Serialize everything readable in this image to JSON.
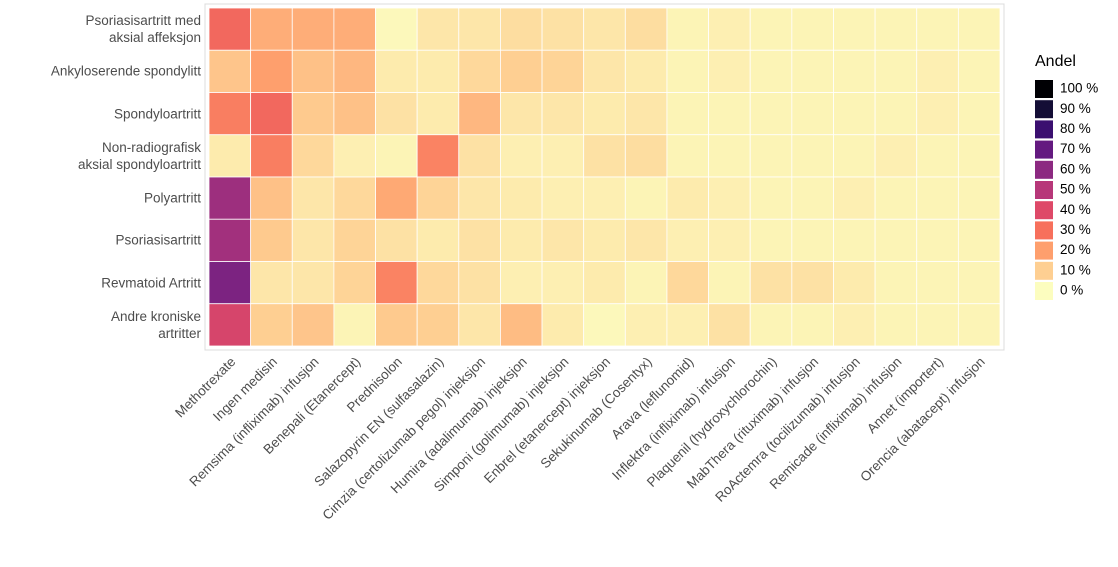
{
  "chart_data": {
    "type": "heatmap",
    "rows": [
      "Psoriasisartritt med\naksial affeksjon",
      "Ankyloserende spondylitt",
      "Spondyloartritt",
      "Non-radiografisk\naksial spondyloartritt",
      "Polyartritt",
      "Psoriasisartritt",
      "Revmatoid Artritt",
      "Andre kroniske\nartritter"
    ],
    "columns": [
      "Methotrexate",
      "Ingen medisin",
      "Remsima (infliximab) infusjon",
      "Benepali (Etanercept)",
      "Prednisolon",
      "Salazopyrin EN (sulfasalazin)",
      "Cimzia (certolizumab pegol) injeksjon",
      "Humira (adalimumab) injeksjon",
      "Simponi (golimumab) injeksjon",
      "Enbrel (etanercept) injeksjon",
      "Sekukinumab (Cosentyx)",
      "Arava (leflunomid)",
      "Inflektra (infliximab) infusjon",
      "Plaquenil (hydroxychlorochin)",
      "MabThera (rituximab) infusjon",
      "RoActemra (tocilizumab) infusjon",
      "Remicade (infliximab) infusjon",
      "Annet (importert)",
      "Orencia (abatacept) infusjon"
    ],
    "values": [
      [
        32,
        17,
        17,
        17,
        1,
        5,
        5,
        7,
        6,
        5,
        7,
        2,
        3,
        2,
        2,
        2,
        2,
        2,
        2
      ],
      [
        12,
        20,
        13,
        15,
        4,
        4,
        8,
        10,
        9,
        5,
        4,
        2,
        3,
        2,
        2,
        2,
        2,
        3,
        2
      ],
      [
        27,
        32,
        11,
        13,
        6,
        4,
        15,
        5,
        5,
        4,
        5,
        2,
        2,
        2,
        2,
        2,
        2,
        3,
        2
      ],
      [
        4,
        27,
        8,
        3,
        2,
        26,
        6,
        3,
        3,
        6,
        7,
        2,
        2,
        2,
        2,
        2,
        3,
        2,
        2
      ],
      [
        56,
        13,
        5,
        8,
        18,
        9,
        5,
        4,
        3,
        3,
        2,
        4,
        3,
        2,
        2,
        3,
        2,
        2,
        2
      ],
      [
        55,
        11,
        5,
        9,
        6,
        4,
        6,
        4,
        5,
        4,
        5,
        3,
        3,
        2,
        2,
        2,
        2,
        2,
        2
      ],
      [
        64,
        5,
        5,
        9,
        26,
        8,
        6,
        3,
        3,
        4,
        2,
        8,
        2,
        6,
        6,
        4,
        2,
        2,
        2
      ],
      [
        42,
        10,
        12,
        2,
        11,
        10,
        5,
        14,
        4,
        1,
        3,
        3,
        6,
        2,
        2,
        3,
        2,
        2,
        2
      ]
    ],
    "legend_title": "Andel",
    "colorbar": {
      "ticks": [
        {
          "value": 100,
          "label": "100 %"
        },
        {
          "value": 90,
          "label": "90 %"
        },
        {
          "value": 80,
          "label": "80 %"
        },
        {
          "value": 70,
          "label": "70 %"
        },
        {
          "value": 60,
          "label": "60 %"
        },
        {
          "value": 50,
          "label": "50 %"
        },
        {
          "value": 40,
          "label": "40 %"
        },
        {
          "value": 30,
          "label": "30 %"
        },
        {
          "value": 20,
          "label": "20 %"
        },
        {
          "value": 10,
          "label": "10 %"
        },
        {
          "value": 0,
          "label": "0 %"
        }
      ],
      "colors": [
        "#000004",
        "#140e36",
        "#3b0f70",
        "#641a80",
        "#8c2981",
        "#b73779",
        "#de4968",
        "#f7705c",
        "#fe9f6d",
        "#fecf92",
        "#fcfdbf"
      ]
    }
  }
}
